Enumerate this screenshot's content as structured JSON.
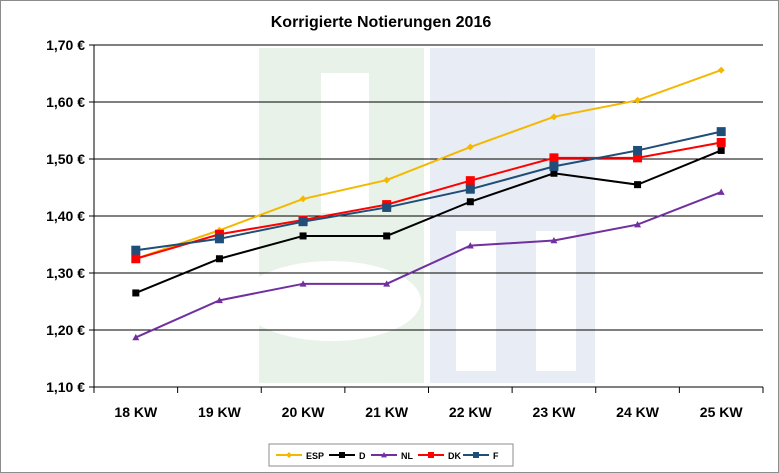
{
  "chart_data": {
    "type": "line",
    "title": "Korrigierte Notierungen 2016",
    "xlabel": "",
    "ylabel": "",
    "categories": [
      "18 KW",
      "19 KW",
      "20 KW",
      "21 KW",
      "22 KW",
      "23 KW",
      "24 KW",
      "25 KW"
    ],
    "ylim": [
      1.1,
      1.7
    ],
    "yticks": [
      1.1,
      1.2,
      1.3,
      1.4,
      1.5,
      1.6,
      1.7
    ],
    "ytick_labels": [
      "1,10 €",
      "1,20 €",
      "1,30 €",
      "1,40 €",
      "1,50 €",
      "1,60 €",
      "1,70 €"
    ],
    "grid": "horizontal",
    "legend_position": "bottom",
    "series": [
      {
        "name": "ESP",
        "color": "#f5b800",
        "marker": "diamond",
        "values": [
          1.325,
          1.375,
          1.43,
          1.463,
          1.521,
          1.574,
          1.603,
          1.656
        ]
      },
      {
        "name": "D",
        "color": "#000000",
        "marker": "square",
        "values": [
          1.265,
          1.325,
          1.365,
          1.365,
          1.425,
          1.475,
          1.455,
          1.515
        ]
      },
      {
        "name": "NL",
        "color": "#7030a0",
        "marker": "triangle",
        "values": [
          1.187,
          1.252,
          1.281,
          1.281,
          1.348,
          1.357,
          1.385,
          1.442
        ]
      },
      {
        "name": "DK",
        "color": "#ff0000",
        "marker": "square",
        "values": [
          1.325,
          1.368,
          1.393,
          1.42,
          1.462,
          1.502,
          1.502,
          1.529
        ]
      },
      {
        "name": "F",
        "color": "#1f4e79",
        "marker": "square",
        "values": [
          1.34,
          1.36,
          1.39,
          1.415,
          1.447,
          1.487,
          1.515,
          1.548
        ]
      }
    ]
  }
}
